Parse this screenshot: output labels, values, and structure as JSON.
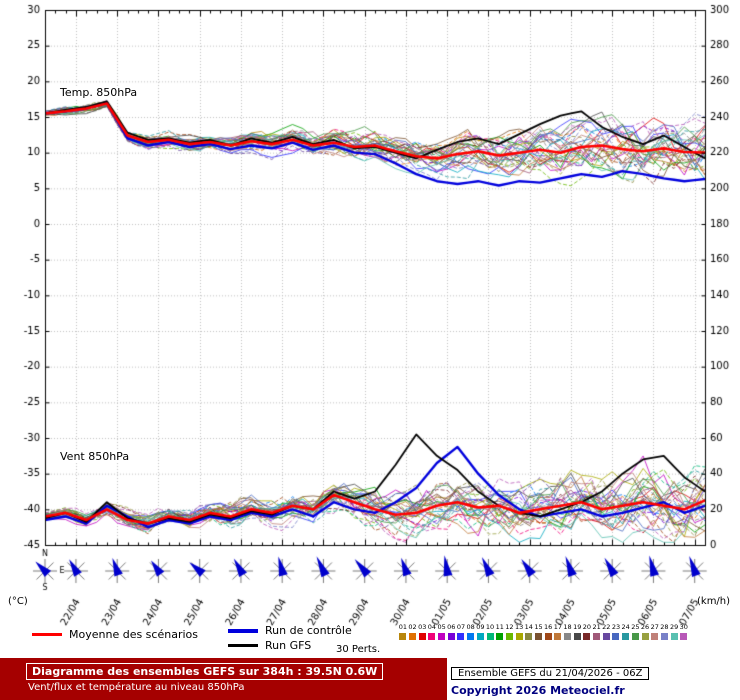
{
  "labels": {
    "temp_label": "Temp. 850hPa",
    "wind_label": "Vent 850hPa"
  },
  "axes": {
    "unit_left": "(°C)",
    "unit_right": "(km/h)",
    "left_ticks": [
      "30",
      "25",
      "20",
      "15",
      "10",
      "5",
      "0",
      "-5",
      "-10",
      "-15",
      "-20",
      "-25",
      "-30",
      "-35",
      "-40",
      "-45"
    ],
    "right_ticks": [
      "300",
      "280",
      "260",
      "240",
      "220",
      "200",
      "180",
      "160",
      "140",
      "120",
      "100",
      "80",
      "60",
      "40",
      "20",
      "0"
    ],
    "compass": [
      "N",
      "E",
      "S"
    ]
  },
  "legend": {
    "mean_label": "Moyenne des scénarios",
    "control_label": "Run de contrôle",
    "gfs_label": "Run GFS",
    "perts_label": "30 Perts.",
    "mean_color": "#ff0000",
    "control_color": "#0000dd",
    "gfs_color": "#000000",
    "member_ids": [
      "01",
      "02",
      "03",
      "04",
      "05",
      "06",
      "07",
      "08",
      "09",
      "10",
      "11",
      "12",
      "13",
      "14",
      "15",
      "16",
      "17",
      "18",
      "19",
      "20",
      "21",
      "22",
      "23",
      "24",
      "25",
      "26",
      "27",
      "28",
      "29",
      "30"
    ],
    "member_colors": [
      "#b8860b",
      "#e07000",
      "#e00000",
      "#f00078",
      "#c000c0",
      "#7800d8",
      "#3030ff",
      "#0078f0",
      "#00a8c0",
      "#00b878",
      "#00a000",
      "#68b800",
      "#a8a800",
      "#888840",
      "#7a5230",
      "#a04818",
      "#c07838",
      "#888888",
      "#484848",
      "#782828",
      "#a05878",
      "#6848a0",
      "#4868c0",
      "#2898a0",
      "#489848",
      "#98a040",
      "#c08078",
      "#7880c8",
      "#58c0b0",
      "#b858b8"
    ]
  },
  "banner": {
    "title": "Diagramme des ensembles GEFS sur 384h : 39.5N 0.6W",
    "subtitle": "Vent/flux et température au niveau 850hPa",
    "run_info": "Ensemble GEFS du 21/04/2026 - 06Z",
    "copyright": "Copyright 2026 Meteociel.fr",
    "banner_color": "#a50000",
    "copyright_color": "#000080"
  },
  "chart_data": {
    "type": "line",
    "title": "Diagramme des ensembles GEFS sur 384h : 39.5N 0.6W",
    "start_label": "21/04 06Z",
    "step_hours": 12,
    "hours_total": 384,
    "temp_ylim": [
      -45,
      30
    ],
    "wind_ylim_kmh": [
      0,
      300
    ],
    "grid": true,
    "x_day_labels": [
      "22/04",
      "23/04",
      "24/04",
      "25/04",
      "26/04",
      "27/04",
      "28/04",
      "29/04",
      "30/04",
      "01/05",
      "02/05",
      "03/05",
      "04/05",
      "05/05",
      "06/05",
      "07/05"
    ],
    "temperature_850hPa": {
      "mean": [
        15.5,
        15.8,
        16.2,
        16.9,
        12.4,
        11.5,
        11.8,
        11.2,
        11.5,
        11.0,
        11.6,
        11.2,
        11.8,
        11.0,
        11.4,
        10.8,
        11.0,
        10.2,
        9.5,
        9.2,
        9.8,
        10.2,
        9.6,
        10.0,
        10.4,
        10.0,
        10.8,
        11.0,
        10.5,
        10.2,
        10.6,
        10.1,
        10.0
      ],
      "control": [
        15.5,
        15.8,
        16.2,
        17.0,
        12.0,
        11.0,
        11.5,
        10.8,
        11.2,
        10.5,
        11.0,
        10.6,
        11.4,
        10.4,
        11.0,
        10.0,
        9.8,
        8.5,
        7.0,
        6.0,
        5.6,
        6.0,
        5.4,
        6.0,
        5.8,
        6.4,
        7.0,
        6.6,
        7.4,
        7.0,
        6.4,
        6.0,
        6.3
      ],
      "gfs": [
        15.5,
        16.0,
        16.4,
        17.2,
        12.8,
        11.8,
        12.0,
        11.4,
        11.8,
        11.0,
        12.0,
        11.4,
        12.2,
        11.2,
        11.8,
        10.6,
        10.8,
        10.0,
        9.2,
        10.4,
        11.5,
        12.0,
        11.2,
        12.6,
        14.0,
        15.2,
        15.8,
        13.6,
        12.2,
        11.2,
        12.4,
        10.8,
        9.2
      ]
    },
    "wind_850hPa_kmh": {
      "mean": [
        16,
        18,
        14,
        20,
        14,
        12,
        16,
        14,
        18,
        16,
        20,
        18,
        22,
        20,
        28,
        24,
        20,
        17,
        18,
        22,
        24,
        21,
        22,
        18,
        20,
        22,
        24,
        20,
        22,
        24,
        22,
        20,
        25
      ],
      "control": [
        14,
        16,
        12,
        22,
        16,
        10,
        14,
        12,
        16,
        14,
        18,
        16,
        20,
        16,
        24,
        20,
        18,
        24,
        32,
        46,
        55,
        40,
        28,
        20,
        16,
        18,
        20,
        16,
        18,
        21,
        24,
        18,
        22
      ],
      "gfs": [
        15,
        18,
        13,
        24,
        15,
        12,
        15,
        13,
        17,
        15,
        19,
        17,
        22,
        20,
        30,
        26,
        30,
        45,
        62,
        50,
        42,
        30,
        22,
        18,
        16,
        20,
        24,
        30,
        40,
        48,
        50,
        38,
        30
      ]
    },
    "members": {
      "count": 30,
      "temp_spread_end_c": 5,
      "wind_spread_end_kmh": 20
    },
    "wind_barbs_dir_deg": [
      225,
      240,
      250,
      235,
      220,
      240,
      255,
      245,
      230,
      250,
      260,
      245,
      235,
      250,
      240,
      255,
      250
    ]
  }
}
